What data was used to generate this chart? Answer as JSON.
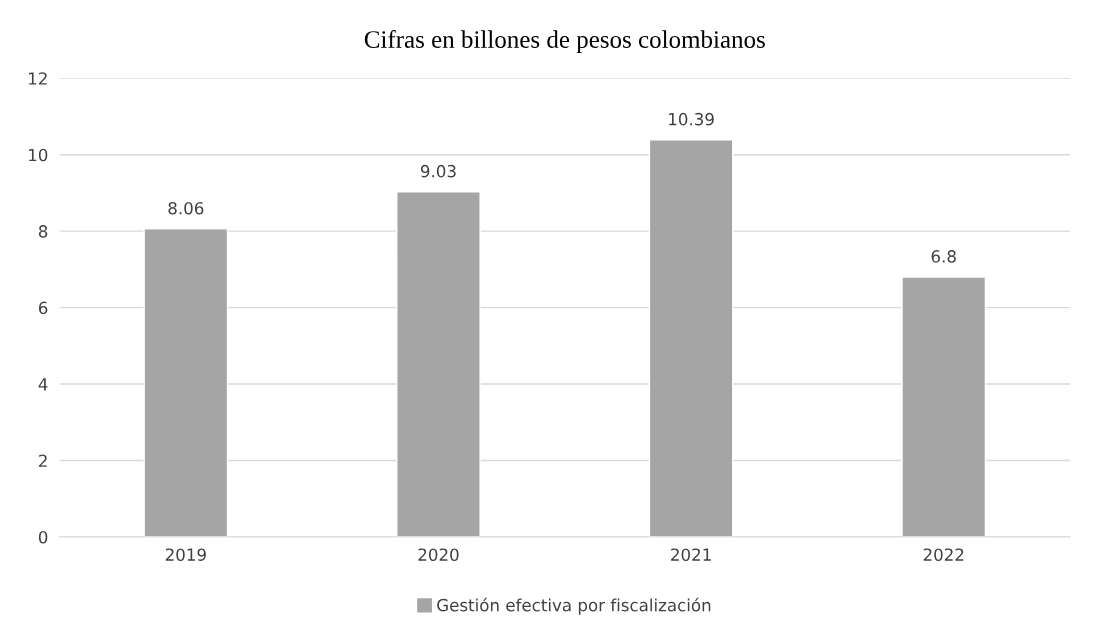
{
  "chart_data": {
    "type": "bar",
    "title": "Cifras en billones de pesos colombianos",
    "categories": [
      "2019",
      "2020",
      "2021",
      "2022"
    ],
    "series": [
      {
        "name": "Gestión efectiva por fiscalización",
        "color": "#a5a5a5",
        "values": [
          8.06,
          9.03,
          10.39,
          6.8
        ]
      }
    ],
    "ylim": [
      0,
      12
    ],
    "yticks": [
      0,
      2,
      4,
      6,
      8,
      10,
      12
    ],
    "grid": "y",
    "legend": "bottom",
    "data_labels": true
  }
}
